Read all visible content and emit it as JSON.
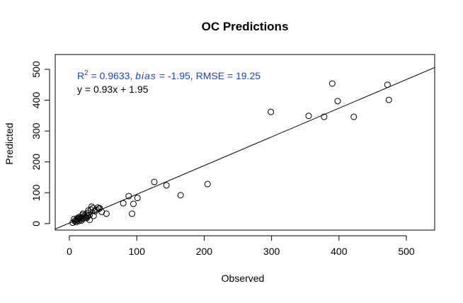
{
  "chart_data": {
    "type": "scatter",
    "title": "OC Predictions",
    "x_label": "Observed",
    "y_label": "Predicted",
    "xlim": [
      -21,
      542
    ],
    "ylim": [
      -21,
      548
    ],
    "xticks": [
      0,
      100,
      200,
      300,
      400,
      500
    ],
    "yticks": [
      0,
      100,
      200,
      300,
      400,
      500
    ],
    "color": "#000000",
    "annotation": {
      "color": "#1f3fdb",
      "line1": {
        "r": "R",
        "sup": "2",
        "r2": " = 0.9633, ",
        "bias": "bias",
        "rest": " = -1.95,  RMSE = 19.25"
      },
      "line2": "y = 0.93x + 1.95"
    },
    "fit": {
      "slope": 0.93,
      "intercept": 1.95
    },
    "x": [
      472,
      474,
      390,
      398,
      422,
      378,
      355,
      299,
      205,
      165,
      144,
      126,
      88,
      101,
      95,
      93,
      80,
      55,
      5,
      8,
      10,
      12,
      14,
      15,
      16,
      18,
      20,
      22,
      24,
      25,
      26,
      28,
      30,
      32,
      35,
      38,
      40,
      42,
      44,
      45,
      48,
      10,
      12,
      15,
      18,
      20,
      22,
      25,
      28,
      30,
      33,
      36,
      12,
      20,
      27,
      14,
      9,
      7
    ],
    "y": [
      450,
      401,
      454,
      397,
      346,
      346,
      349,
      362,
      128,
      92,
      124,
      135,
      89,
      83,
      64,
      32,
      66,
      32,
      3,
      8,
      12,
      10,
      15,
      18,
      12,
      20,
      15,
      25,
      22,
      30,
      18,
      35,
      28,
      45,
      50,
      40,
      45,
      52,
      48,
      50,
      38,
      5,
      14,
      22,
      10,
      28,
      18,
      20,
      42,
      12,
      55,
      25,
      18,
      32,
      25,
      8,
      10,
      15
    ]
  }
}
